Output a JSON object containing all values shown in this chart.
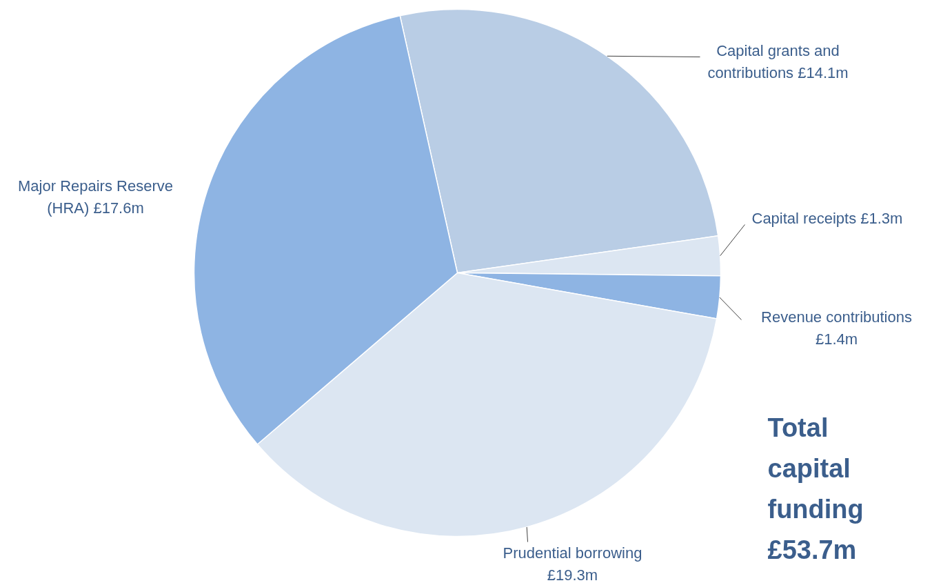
{
  "chart_data": {
    "type": "pie",
    "categories": [
      "Capital grants and contributions",
      "Capital receipts",
      "Revenue contributions",
      "Prudential borrowing",
      "Major Repairs Reserve (HRA)"
    ],
    "values": [
      14.1,
      1.3,
      1.4,
      19.3,
      17.6
    ],
    "value_labels": [
      "£14.1m",
      "£1.3m",
      "£1.4m",
      "£19.3m",
      "£17.6m"
    ],
    "colors": [
      "#b9cde5",
      "#dce6f2",
      "#8eb4e3",
      "#dce6f2",
      "#8eb4e3"
    ],
    "annotations": [
      "Total capital funding £53.7m"
    ]
  }
}
